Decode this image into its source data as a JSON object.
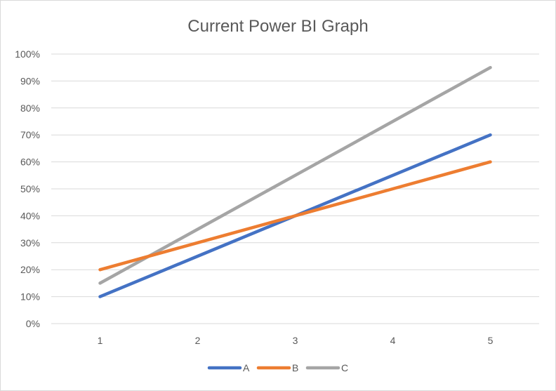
{
  "chart_data": {
    "type": "line",
    "title": "Current Power BI Graph",
    "xlabel": "",
    "ylabel": "",
    "x": [
      1,
      2,
      3,
      4,
      5
    ],
    "x_tick_labels": [
      "1",
      "2",
      "3",
      "4",
      "5"
    ],
    "ylim": [
      0,
      1
    ],
    "y_ticks": [
      0,
      0.1,
      0.2,
      0.3,
      0.4,
      0.5,
      0.6,
      0.7,
      0.8,
      0.9,
      1.0
    ],
    "y_tick_labels": [
      "0%",
      "10%",
      "20%",
      "30%",
      "40%",
      "50%",
      "60%",
      "70%",
      "80%",
      "90%",
      "100%"
    ],
    "grid": true,
    "legend_position": "bottom",
    "series": [
      {
        "name": "A",
        "color": "#4472C4",
        "values": [
          0.1,
          0.25,
          0.4,
          0.55,
          0.7
        ]
      },
      {
        "name": "B",
        "color": "#ED7D31",
        "values": [
          0.2,
          0.3,
          0.4,
          0.5,
          0.6
        ]
      },
      {
        "name": "C",
        "color": "#A5A5A5",
        "values": [
          0.15,
          0.35,
          0.55,
          0.75,
          0.95
        ]
      }
    ]
  }
}
